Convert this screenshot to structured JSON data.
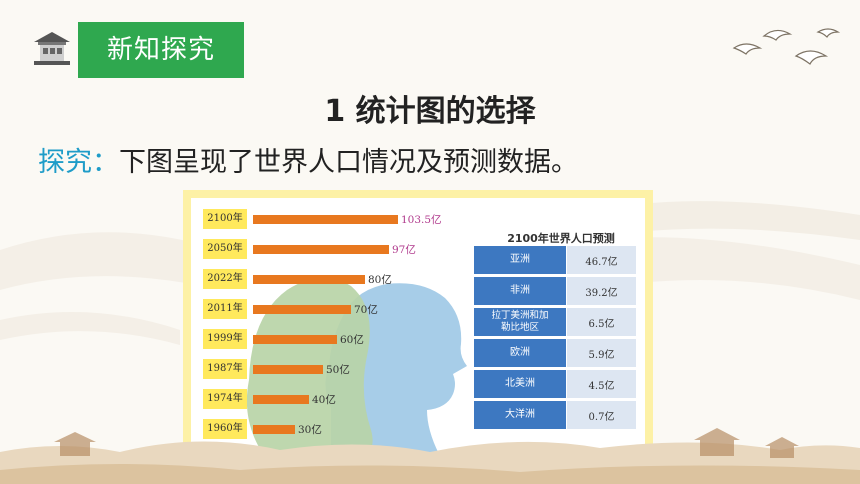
{
  "section_tag": "新知探究",
  "lesson_title": "1  统计图的选择",
  "intro": {
    "keyword": "探究：",
    "text": "下图呈现了世界人口情况及预测数据。"
  },
  "colors": {
    "tag_green": "#2fa84f",
    "keyword_blue": "#1e9cc8",
    "bar_orange": "#e8781f",
    "year_label_yellow": "#ffe95c",
    "forecast_value_purple": "#b0398c",
    "table_region_blue": "#3d78c1"
  },
  "chart_data": [
    {
      "type": "bar",
      "orientation": "horizontal",
      "categories": [
        "2100年",
        "2050年",
        "2022年",
        "2011年",
        "1999年",
        "1987年",
        "1974年",
        "1960年"
      ],
      "values": [
        103.5,
        97,
        80,
        70,
        60,
        50,
        40,
        30
      ],
      "value_labels": [
        "103.5亿",
        "97亿",
        "80亿",
        "70亿",
        "60亿",
        "50亿",
        "40亿",
        "30亿"
      ],
      "unit": "亿",
      "highlighted_forecast": [
        "2100年",
        "2050年"
      ]
    },
    {
      "type": "table",
      "title": "2100年世界人口预测",
      "rows": [
        {
          "region": "亚洲",
          "value": "46.7亿"
        },
        {
          "region": "非洲",
          "value": "39.2亿"
        },
        {
          "region": "拉丁美洲和加勒比地区",
          "value": "6.5亿"
        },
        {
          "region": "欧洲",
          "value": "5.9亿"
        },
        {
          "region": "北美洲",
          "value": "4.5亿"
        },
        {
          "region": "大洋洲",
          "value": "0.7亿"
        }
      ]
    }
  ]
}
